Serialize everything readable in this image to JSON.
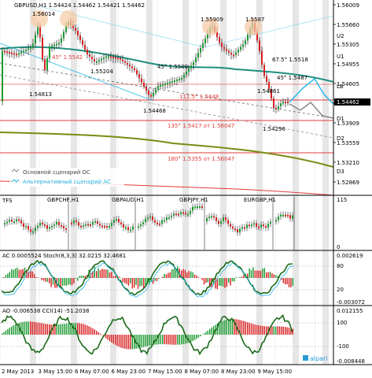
{
  "header": {
    "symbol_line": "GBPUSD,H1  1.54424 1.54462 1.54421 1.54462"
  },
  "colors": {
    "background": "#ffffff",
    "grid": "#d8dfe8",
    "shade": "#e4e4e4",
    "axis": "#000000",
    "bull": "#1a9a2e",
    "bear": "#d81f1f",
    "ma_teal": "#1f8f7f",
    "olive": "#7c8a12",
    "cyan": "#26b8e6",
    "red_level": "#e23b3b",
    "price_tag_bg": "#000000",
    "highlight": "#f7c9a3"
  },
  "main": {
    "price_tag": "1.54462",
    "price_axis": [
      "1.56009",
      "1.55660",
      "1.55305",
      "1.54955",
      "1.54605",
      "1.54255",
      "1.53909",
      "1.53559",
      "1.53210",
      "1.52869"
    ],
    "level_labels": {
      "u2": "U2",
      "u1": "U1",
      "lb": "LB",
      "d1": "D1",
      "d2": "D2",
      "d3": "D3"
    },
    "peaks": {
      "p1": "1.56014",
      "p2": "1.55909",
      "p3": "1.5587"
    },
    "lows": {
      "l1": "1.54813",
      "l2": "1.55204",
      "l3": "1.54468",
      "l4": "1.54861",
      "l5": "1.54296"
    },
    "annotations": {
      "a1": "45° 1.5542",
      "a2": "45° 1.5509",
      "a3": "112.5° 1.5448",
      "a4": "67.5° 1.5518",
      "a5": "45° 1.5487",
      "a6": "135° 1.5417 от 1.56047",
      "a7": "180° 1.5355 от 1.56047"
    },
    "legend": {
      "base": "Основной сценарий ОС",
      "alt": "Альтернативный сценарий АС"
    }
  },
  "pane2": {
    "label": "TFS",
    "pairs": [
      "GBPCHF,H1",
      "GBPAUD,H1",
      "GBPJPY,H1",
      "EURGBP,H1"
    ],
    "axis": [
      "115",
      "0"
    ]
  },
  "pane3": {
    "label": "AC 0.0005524  Stoch(8,3,3) 32.0215 32.4681",
    "axis": [
      "0.002619",
      "80",
      "20",
      "-0.003072"
    ]
  },
  "pane4": {
    "label": "AO -0.006538  CCI(14) -51.2038",
    "axis": [
      "0.012155",
      "100",
      "-100",
      "-0.008448"
    ],
    "brand": "alpari"
  },
  "time_axis": [
    "2 May 2013",
    "3 May 15:00",
    "6 May 07:00",
    "6 May 23:00",
    "7 May 15:00",
    "8 May 07:00",
    "8 May 23:00",
    "9 May 15:00"
  ]
}
